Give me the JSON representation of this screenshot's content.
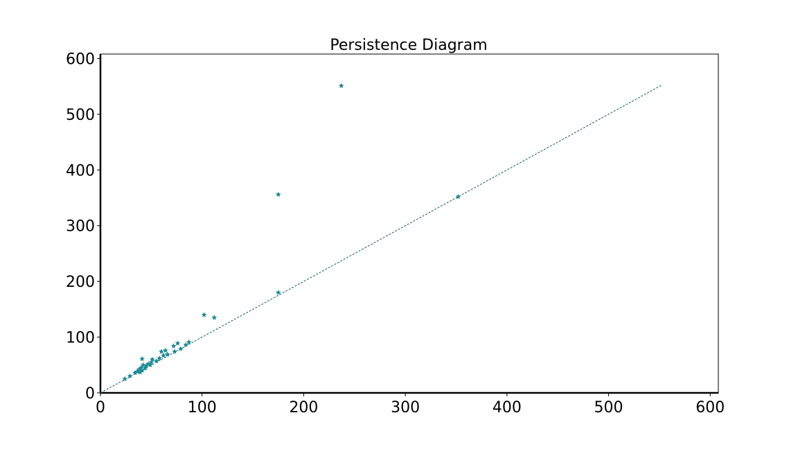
{
  "chart_data": {
    "type": "scatter",
    "title": "Persistence Diagram",
    "xlabel": "",
    "ylabel": "",
    "xlim": [
      0,
      608
    ],
    "ylim": [
      0,
      608
    ],
    "xticks": [
      0,
      100,
      200,
      300,
      400,
      500,
      600
    ],
    "yticks": [
      0,
      100,
      200,
      300,
      400,
      500,
      600
    ],
    "grid": false,
    "marker": "star",
    "point_color": "#1a8a96",
    "diagonal": {
      "from": 0,
      "to": 552,
      "color": "#0b5f5f",
      "style": "dashed"
    },
    "points": [
      {
        "x": 237,
        "y": 551
      },
      {
        "x": 175,
        "y": 356
      },
      {
        "x": 352,
        "y": 352
      },
      {
        "x": 175,
        "y": 180
      },
      {
        "x": 102,
        "y": 140
      },
      {
        "x": 112,
        "y": 135
      },
      {
        "x": 87,
        "y": 91
      },
      {
        "x": 84,
        "y": 86
      },
      {
        "x": 76,
        "y": 89
      },
      {
        "x": 72,
        "y": 84
      },
      {
        "x": 79,
        "y": 79
      },
      {
        "x": 73,
        "y": 74
      },
      {
        "x": 64,
        "y": 76
      },
      {
        "x": 60,
        "y": 74
      },
      {
        "x": 62,
        "y": 67
      },
      {
        "x": 66,
        "y": 69
      },
      {
        "x": 58,
        "y": 62
      },
      {
        "x": 55,
        "y": 57
      },
      {
        "x": 51,
        "y": 60
      },
      {
        "x": 41,
        "y": 61
      },
      {
        "x": 50,
        "y": 55
      },
      {
        "x": 47,
        "y": 52
      },
      {
        "x": 49,
        "y": 50
      },
      {
        "x": 45,
        "y": 48
      },
      {
        "x": 42,
        "y": 50
      },
      {
        "x": 40,
        "y": 45
      },
      {
        "x": 44,
        "y": 44
      },
      {
        "x": 38,
        "y": 42
      },
      {
        "x": 41,
        "y": 40
      },
      {
        "x": 36,
        "y": 38
      },
      {
        "x": 39,
        "y": 37
      },
      {
        "x": 34,
        "y": 36
      },
      {
        "x": 29,
        "y": 30
      },
      {
        "x": 24,
        "y": 25
      }
    ]
  }
}
